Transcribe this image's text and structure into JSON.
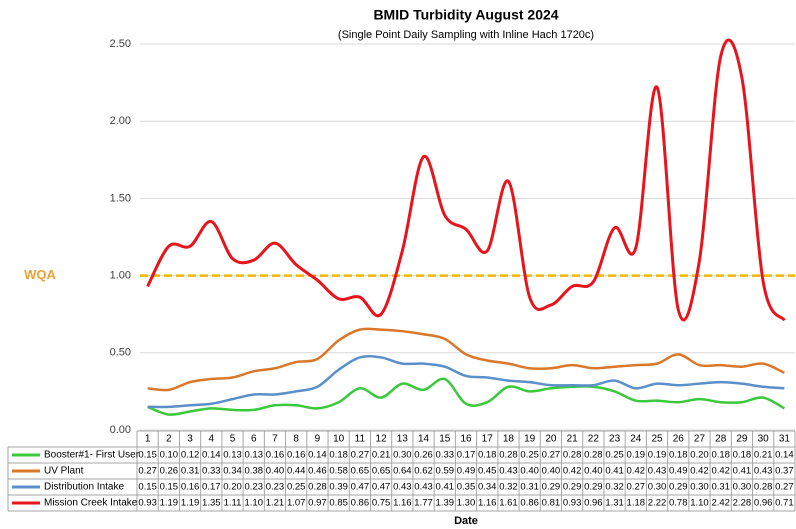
{
  "chart_data": {
    "type": "line",
    "title": "BMID Turbidity August 2024",
    "subtitle": "(Single Point Daily Sampling with Inline Hach 1720c)",
    "x_label": "Date",
    "categories": [
      "1",
      "2",
      "3",
      "4",
      "5",
      "6",
      "7",
      "8",
      "9",
      "10",
      "11",
      "12",
      "13",
      "14",
      "15",
      "16",
      "17",
      "18",
      "19",
      "20",
      "21",
      "22",
      "23",
      "24",
      "25",
      "26",
      "27",
      "28",
      "29",
      "30",
      "31"
    ],
    "series": [
      {
        "name": "Booster#1- First User",
        "color": "#3cc83c",
        "values": [
          0.15,
          0.1,
          0.12,
          0.14,
          0.13,
          0.13,
          0.16,
          0.16,
          0.14,
          0.18,
          0.27,
          0.21,
          0.3,
          0.26,
          0.33,
          0.17,
          0.18,
          0.28,
          0.25,
          0.27,
          0.28,
          0.28,
          0.25,
          0.19,
          0.19,
          0.18,
          0.2,
          0.18,
          0.18,
          0.21,
          0.14
        ],
        "value_labels": [
          "0.15",
          "0.10",
          "0.12",
          "0.14",
          "0.13",
          "0.13",
          "0.16",
          "0.16",
          "0.14",
          "0.18",
          "0.27",
          "0.21",
          "0.30",
          "0.26",
          "0.33",
          "0.17",
          "0.18",
          "0.28",
          "0.25",
          "0.27",
          "0.28",
          "0.28",
          "0.25",
          "0.19",
          "0.19",
          "0.18",
          "0.20",
          "0.18",
          "0.18",
          "0.21",
          "0.14"
        ]
      },
      {
        "name": "UV Plant",
        "color": "#d9782a",
        "values": [
          0.27,
          0.26,
          0.31,
          0.33,
          0.34,
          0.38,
          0.4,
          0.44,
          0.46,
          0.58,
          0.65,
          0.65,
          0.64,
          0.62,
          0.59,
          0.49,
          0.45,
          0.43,
          0.4,
          0.4,
          0.42,
          0.4,
          0.41,
          0.42,
          0.43,
          0.49,
          0.42,
          0.42,
          0.41,
          0.43,
          0.37
        ],
        "value_labels": [
          "0.27",
          "0.26",
          "0.31",
          "0.33",
          "0.34",
          "0.38",
          "0.40",
          "0.44",
          "0.46",
          "0.58",
          "0.65",
          "0.65",
          "0.64",
          "0.62",
          "0.59",
          "0.49",
          "0.45",
          "0.43",
          "0.40",
          "0.40",
          "0.42",
          "0.40",
          "0.41",
          "0.42",
          "0.43",
          "0.49",
          "0.42",
          "0.42",
          "0.41",
          "0.43",
          "0.37"
        ]
      },
      {
        "name": "Distribution Intake",
        "color": "#5b8fc9",
        "values": [
          0.15,
          0.15,
          0.16,
          0.17,
          0.2,
          0.23,
          0.23,
          0.25,
          0.28,
          0.39,
          0.47,
          0.47,
          0.43,
          0.43,
          0.41,
          0.35,
          0.34,
          0.32,
          0.31,
          0.29,
          0.29,
          0.29,
          0.32,
          0.27,
          0.3,
          0.29,
          0.3,
          0.31,
          0.3,
          0.28,
          0.27
        ],
        "value_labels": [
          "0.15",
          "0.15",
          "0.16",
          "0.17",
          "0.20",
          "0.23",
          "0.23",
          "0.25",
          "0.28",
          "0.39",
          "0.47",
          "0.47",
          "0.43",
          "0.43",
          "0.41",
          "0.35",
          "0.34",
          "0.32",
          "0.31",
          "0.29",
          "0.29",
          "0.29",
          "0.32",
          "0.27",
          "0.30",
          "0.29",
          "0.30",
          "0.31",
          "0.30",
          "0.28",
          "0.27"
        ]
      },
      {
        "name": "Mission Creek Intake",
        "color": "#e8141c",
        "values": [
          0.93,
          1.19,
          1.19,
          1.35,
          1.11,
          1.1,
          1.21,
          1.07,
          0.97,
          0.85,
          0.86,
          0.75,
          1.16,
          1.77,
          1.39,
          1.3,
          1.16,
          1.61,
          0.86,
          0.81,
          0.93,
          0.96,
          1.31,
          1.18,
          2.22,
          0.78,
          1.1,
          2.42,
          2.28,
          0.96,
          0.71
        ],
        "value_labels": [
          "0.93",
          "1.19",
          "1.19",
          "1.35",
          "1.11",
          "1.10",
          "1.21",
          "1.07",
          "0.97",
          "0.85",
          "0.86",
          "0.75",
          "1.16",
          "1.77",
          "1.39",
          "1.30",
          "1.16",
          "1.61",
          "0.86",
          "0.81",
          "0.93",
          "0.96",
          "1.31",
          "1.18",
          "2.22",
          "0.78",
          "1.10",
          "2.42",
          "2.28",
          "0.96",
          "0.71"
        ]
      }
    ],
    "ylim": [
      0,
      2.5
    ],
    "yticks": [
      {
        "value": 0,
        "label": "0.00"
      },
      {
        "value": 0.5,
        "label": "0.50"
      },
      {
        "value": 1,
        "label": "1.00"
      },
      {
        "value": 1.5,
        "label": "1.50"
      },
      {
        "value": 2,
        "label": "2.00"
      },
      {
        "value": 2.5,
        "label": "2.50"
      }
    ],
    "grid": true,
    "reference_line": {
      "label": "WQA",
      "value": 1,
      "color": "#f5b800"
    }
  }
}
